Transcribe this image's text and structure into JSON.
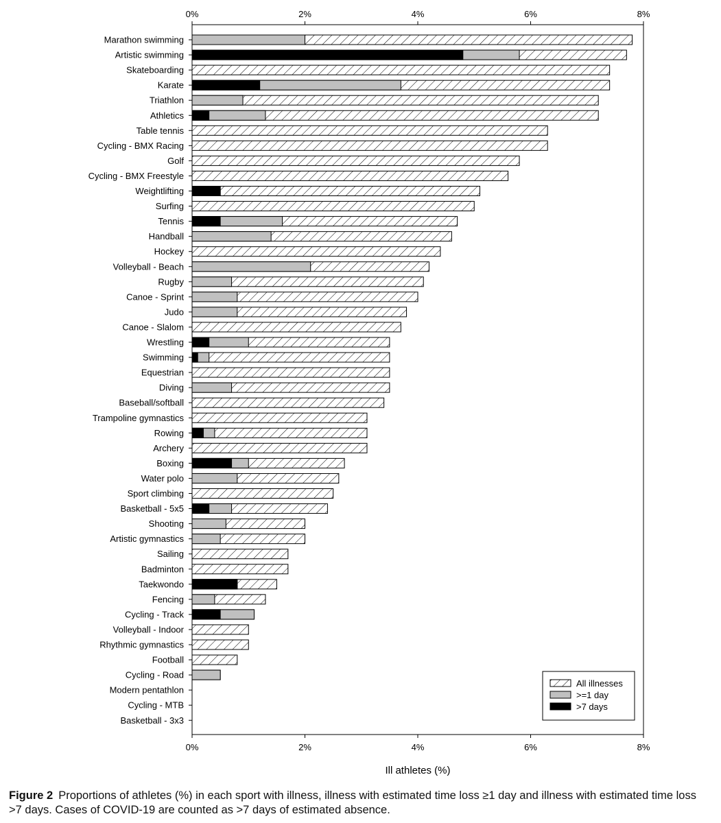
{
  "chart_data": {
    "type": "bar",
    "orientation": "horizontal",
    "stacking": "overlay",
    "xlabel": "Ill athletes (%)",
    "xlim": [
      0,
      8
    ],
    "xticks": [
      0,
      2,
      4,
      6,
      8
    ],
    "tick_suffix": "%",
    "legend_position": "bottom-right",
    "categories": [
      "Marathon swimming",
      "Artistic swimming",
      "Skateboarding",
      "Karate",
      "Triathlon",
      "Athletics",
      "Table tennis",
      "Cycling - BMX Racing",
      "Golf",
      "Cycling - BMX Freestyle",
      "Weightlifting",
      "Surfing",
      "Tennis",
      "Handball",
      "Hockey",
      "Volleyball - Beach",
      "Rugby",
      "Canoe - Sprint",
      "Judo",
      "Canoe - Slalom",
      "Wrestling",
      "Swimming",
      "Equestrian",
      "Diving",
      "Baseball/softball",
      "Trampoline gymnastics",
      "Rowing",
      "Archery",
      "Boxing",
      "Water polo",
      "Sport climbing",
      "Basketball - 5x5",
      "Shooting",
      "Artistic gymnastics",
      "Sailing",
      "Badminton",
      "Taekwondo",
      "Fencing",
      "Cycling - Track",
      "Volleyball - Indoor",
      "Rhythmic gymnastics",
      "Football",
      "Cycling - Road",
      "Modern pentathlon",
      "Cycling - MTB",
      "Basketball - 3x3"
    ],
    "series": [
      {
        "name": "All illnesses",
        "pattern": "hatched",
        "values": [
          7.8,
          7.7,
          7.4,
          7.4,
          7.2,
          7.2,
          6.3,
          6.3,
          5.8,
          5.6,
          5.1,
          5.0,
          4.7,
          4.6,
          4.4,
          4.2,
          4.1,
          4.0,
          3.8,
          3.7,
          3.5,
          3.5,
          3.5,
          3.5,
          3.4,
          3.1,
          3.1,
          3.1,
          2.7,
          2.6,
          2.5,
          2.4,
          2.0,
          2.0,
          1.7,
          1.7,
          1.5,
          1.3,
          1.1,
          1.0,
          1.0,
          0.8,
          0.5,
          0,
          0,
          0
        ]
      },
      {
        "name": ">=1 day",
        "color": "#c0c0c0",
        "values": [
          2.0,
          5.8,
          0,
          3.7,
          0.9,
          1.3,
          0,
          0,
          0,
          0,
          0.5,
          0,
          1.6,
          1.4,
          0,
          2.1,
          0.7,
          0.8,
          0.8,
          0,
          1.0,
          0.3,
          0,
          0.7,
          0,
          0,
          0.4,
          0,
          1.0,
          0.8,
          0,
          0.7,
          0.6,
          0.5,
          0,
          0,
          0.8,
          0.4,
          1.1,
          0,
          0,
          0,
          0.5,
          0,
          0,
          0
        ]
      },
      {
        "name": ">7 days",
        "color": "#000000",
        "values": [
          0,
          4.8,
          0,
          1.2,
          0,
          0.3,
          0,
          0,
          0,
          0,
          0.5,
          0,
          0.5,
          0,
          0,
          0,
          0,
          0,
          0,
          0,
          0.3,
          0.1,
          0,
          0,
          0,
          0,
          0.2,
          0,
          0.7,
          0,
          0,
          0.3,
          0,
          0,
          0,
          0,
          0.8,
          0,
          0.5,
          0,
          0,
          0,
          0,
          0,
          0,
          0
        ]
      }
    ]
  },
  "caption": {
    "label": "Figure 2",
    "text": "Proportions of athletes (%) in each sport with illness, illness with estimated time loss ≥1 day and illness with estimated time loss >7 days. Cases of COVID-19 are counted as >7 days of estimated absence."
  }
}
